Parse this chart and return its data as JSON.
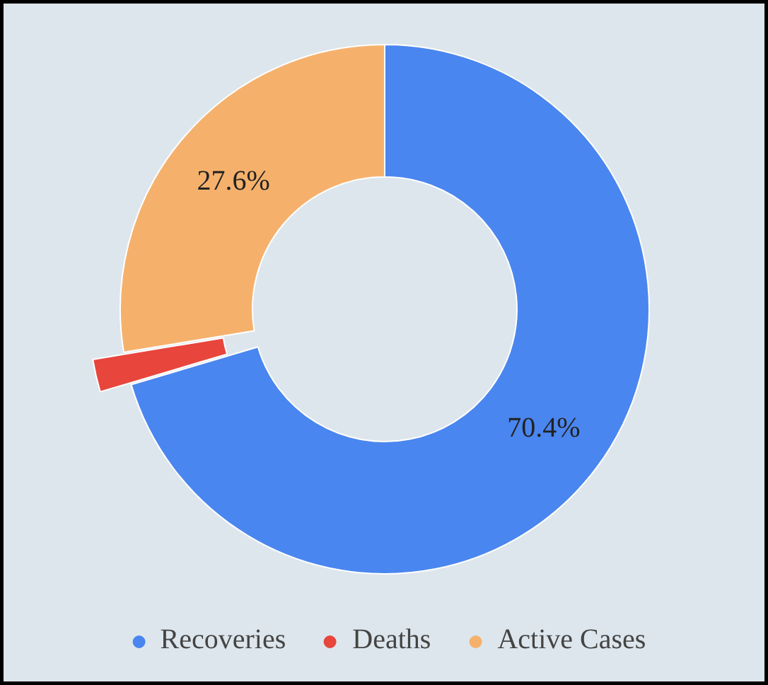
{
  "chart_data": {
    "type": "donut",
    "categories": [
      "Recoveries",
      "Deaths",
      "Active Cases"
    ],
    "values": [
      70.4,
      2.0,
      27.6
    ],
    "colors": [
      "#4a86ef",
      "#e8453c",
      "#f5b16c"
    ],
    "value_labels": [
      "70.4%",
      null,
      "27.6%"
    ],
    "legend": "bottom"
  }
}
